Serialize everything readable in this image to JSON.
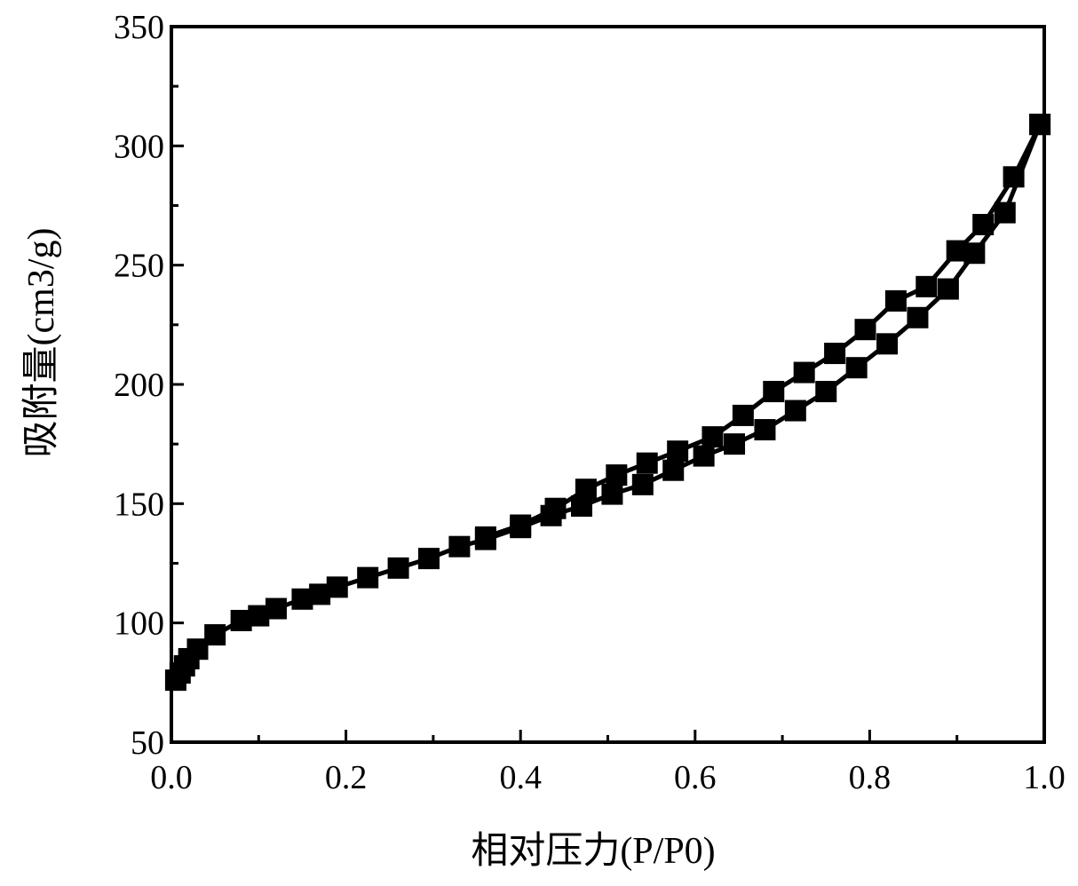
{
  "chart_data": {
    "type": "line",
    "xlabel": "相对压力(P/P0)",
    "ylabel": "吸附量(cm3/g)",
    "xlim": [
      0.0,
      1.0
    ],
    "ylim": [
      50,
      350
    ],
    "xticks": [
      0.0,
      0.2,
      0.4,
      0.6,
      0.8,
      1.0
    ],
    "xtick_labels": [
      "0.0",
      "0.2",
      "0.4",
      "0.6",
      "0.8",
      "1.0"
    ],
    "yticks": [
      50,
      100,
      150,
      200,
      250,
      300,
      350
    ],
    "ytick_labels": [
      "50",
      "100",
      "150",
      "200",
      "250",
      "300",
      "350"
    ],
    "grid": false,
    "marker": "square",
    "series": [
      {
        "x": [
          0.005,
          0.01,
          0.015,
          0.02,
          0.03,
          0.05,
          0.08,
          0.1,
          0.12,
          0.15,
          0.17,
          0.19,
          0.225,
          0.26,
          0.295,
          0.33,
          0.36,
          0.4,
          0.435,
          0.47,
          0.505,
          0.54,
          0.575,
          0.61,
          0.645,
          0.68,
          0.715,
          0.75,
          0.785,
          0.82,
          0.855,
          0.89,
          0.92,
          0.955,
          0.995
        ],
        "y": [
          76,
          79,
          82,
          85,
          89,
          95,
          101,
          103,
          106,
          110,
          112,
          115,
          119,
          123,
          127,
          132,
          135,
          140,
          145,
          149,
          154,
          158,
          164,
          170,
          175,
          181,
          189,
          197,
          207,
          217,
          228,
          240,
          255,
          272,
          309
        ]
      },
      {
        "x": [
          0.995,
          0.965,
          0.93,
          0.9,
          0.865,
          0.83,
          0.795,
          0.76,
          0.725,
          0.69,
          0.655,
          0.62,
          0.58,
          0.545,
          0.51,
          0.475,
          0.44,
          0.4,
          0.36
        ],
        "y": [
          309,
          287,
          267,
          256,
          241,
          235,
          223,
          213,
          205,
          197,
          187,
          178,
          172,
          167,
          162,
          156,
          148,
          141,
          136
        ]
      }
    ]
  }
}
